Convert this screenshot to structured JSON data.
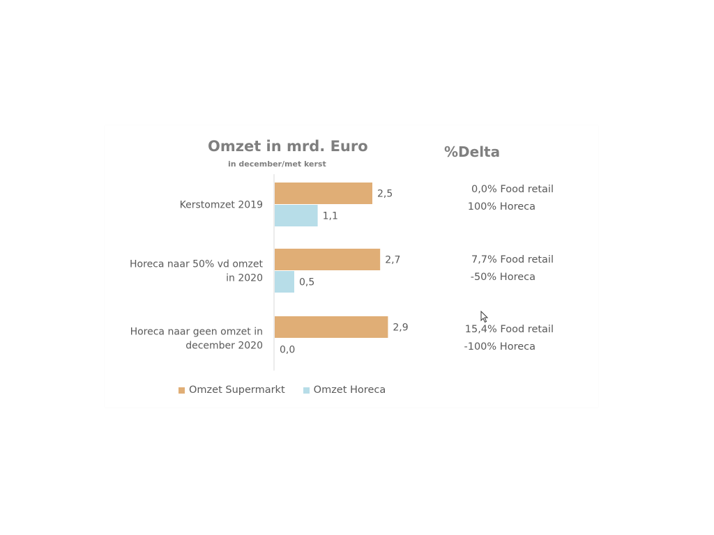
{
  "chart_data": {
    "type": "bar",
    "orientation": "horizontal",
    "title": "Omzet in mrd. Euro",
    "subtitle": "in december/met kerst",
    "categories": [
      [
        "Kerstomzet 2019"
      ],
      [
        "Horeca naar 50% vd omzet",
        "in 2020"
      ],
      [
        "Horeca naar geen omzet in",
        "december 2020"
      ]
    ],
    "series": [
      {
        "name": "Omzet Supermarkt",
        "color": "#e0ae76",
        "values": [
          2.5,
          2.7,
          2.9
        ],
        "labels": [
          "2,5",
          "2,7",
          "2,9"
        ]
      },
      {
        "name": "Omzet Horeca",
        "color": "#b7dde8",
        "values": [
          1.1,
          0.5,
          0.0
        ],
        "labels": [
          "1,1",
          "0,5",
          "0,0"
        ]
      }
    ],
    "xlim": [
      0,
      5
    ],
    "grid": false,
    "legend": "bottom"
  },
  "delta": {
    "title": "%Delta",
    "rows": [
      [
        "0,0% Food retail",
        "100% Horeca"
      ],
      [
        "7,7% Food retail",
        "-50% Horeca"
      ],
      [
        "15,4% Food retail",
        "-100% Horeca"
      ]
    ]
  },
  "legend": {
    "supermarkt": "Omzet Supermarkt",
    "horeca": "Omzet Horeca"
  }
}
